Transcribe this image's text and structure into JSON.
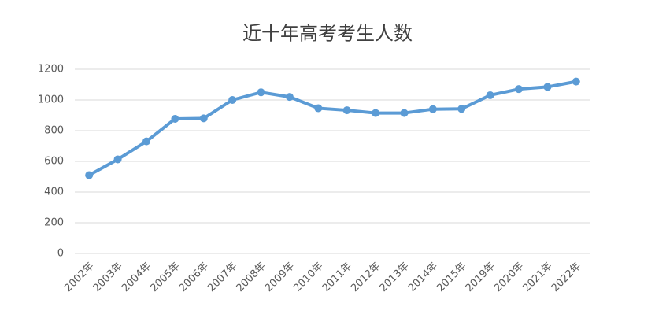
{
  "chart_data": {
    "type": "line",
    "title": "近十年高考考生人数",
    "categories": [
      "2002年",
      "2003年",
      "2004年",
      "2005年",
      "2006年",
      "2007年",
      "2008年",
      "2009年",
      "2010年",
      "2011年",
      "2012年",
      "2013年",
      "2014年",
      "2015年",
      "2019年",
      "2020年",
      "2021年",
      "2022年"
    ],
    "values": [
      510,
      613,
      730,
      877,
      880,
      1000,
      1050,
      1020,
      946,
      933,
      915,
      915,
      940,
      942,
      1031,
      1071,
      1085,
      1120
    ],
    "color": "#5b9bd5",
    "ylim": [
      0,
      1200
    ],
    "yticks": [
      0,
      200,
      400,
      600,
      800,
      1000,
      1200
    ],
    "grid": true
  }
}
